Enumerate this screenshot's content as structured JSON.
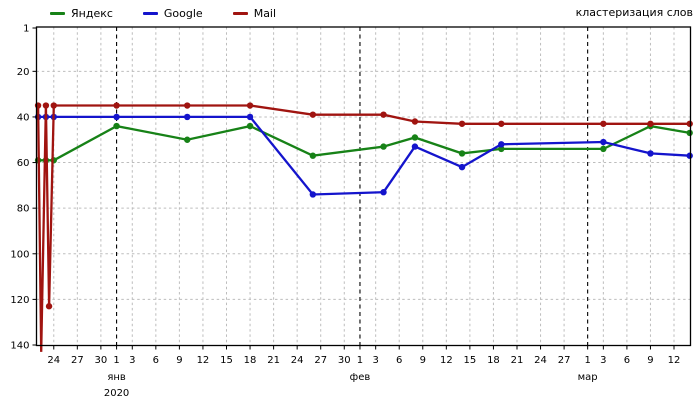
{
  "legend": {
    "items": [
      {
        "label": "Яндекс",
        "color": "#178217"
      },
      {
        "label": "Google",
        "color": "#1414cc"
      },
      {
        "label": "Mail",
        "color": "#a01410"
      }
    ]
  },
  "chart_data": {
    "type": "line",
    "title": "кластеризация слов",
    "legend_position": "top-left",
    "grid": true,
    "y_axis": {
      "inverted": true,
      "min": 1,
      "max": 140,
      "ticks": [
        1,
        20,
        40,
        60,
        80,
        100,
        120,
        140
      ]
    },
    "x_axis": {
      "start_date": "2019-12-22",
      "end_date": "2020-03-14",
      "span_days": 83,
      "ticks": [
        {
          "day": 2,
          "label": "24"
        },
        {
          "day": 5,
          "label": "27"
        },
        {
          "day": 8,
          "label": "30"
        },
        {
          "day": 10,
          "label": "1"
        },
        {
          "day": 12,
          "label": "3"
        },
        {
          "day": 15,
          "label": "6"
        },
        {
          "day": 18,
          "label": "9"
        },
        {
          "day": 21,
          "label": "12"
        },
        {
          "day": 24,
          "label": "15"
        },
        {
          "day": 27,
          "label": "18"
        },
        {
          "day": 30,
          "label": "21"
        },
        {
          "day": 33,
          "label": "24"
        },
        {
          "day": 36,
          "label": "27"
        },
        {
          "day": 39,
          "label": "30"
        },
        {
          "day": 41,
          "label": "1"
        },
        {
          "day": 43,
          "label": "3"
        },
        {
          "day": 46,
          "label": "6"
        },
        {
          "day": 49,
          "label": "9"
        },
        {
          "day": 52,
          "label": "12"
        },
        {
          "day": 55,
          "label": "15"
        },
        {
          "day": 58,
          "label": "18"
        },
        {
          "day": 61,
          "label": "21"
        },
        {
          "day": 64,
          "label": "24"
        },
        {
          "day": 67,
          "label": "27"
        },
        {
          "day": 70,
          "label": "1"
        },
        {
          "day": 72,
          "label": "3"
        },
        {
          "day": 75,
          "label": "6"
        },
        {
          "day": 78,
          "label": "9"
        },
        {
          "day": 81,
          "label": "12"
        }
      ],
      "months": [
        {
          "day": 10,
          "label": "янв",
          "year": "2020"
        },
        {
          "day": 41,
          "label": "фев"
        },
        {
          "day": 70,
          "label": "мар"
        }
      ]
    },
    "check_dates": [
      "22 дек",
      "23 дек",
      "24 дек",
      "1 янв",
      "10 янв",
      "18 янв",
      "26 янв",
      "4 фев",
      "8 фев",
      "14 фев",
      "19 фев",
      "3 мар",
      "9 мар",
      "14 мар"
    ],
    "series": [
      {
        "name": "Яндекс",
        "color": "#178217",
        "points": [
          {
            "day": 0,
            "pos": 59
          },
          {
            "day": 1,
            "pos": 59
          },
          {
            "day": 2,
            "pos": 59
          },
          {
            "day": 10,
            "pos": 44
          },
          {
            "day": 19,
            "pos": 50
          },
          {
            "day": 27,
            "pos": 44
          },
          {
            "day": 35,
            "pos": 57
          },
          {
            "day": 44,
            "pos": 53
          },
          {
            "day": 48,
            "pos": 49
          },
          {
            "day": 54,
            "pos": 56
          },
          {
            "day": 59,
            "pos": 54
          },
          {
            "day": 72,
            "pos": 54
          },
          {
            "day": 78,
            "pos": 44
          },
          {
            "day": 83,
            "pos": 47
          }
        ]
      },
      {
        "name": "Google",
        "color": "#1414cc",
        "points": [
          {
            "day": 0,
            "pos": 40
          },
          {
            "day": 1,
            "pos": 40
          },
          {
            "day": 2,
            "pos": 40
          },
          {
            "day": 10,
            "pos": 40
          },
          {
            "day": 19,
            "pos": 40
          },
          {
            "day": 27,
            "pos": 40
          },
          {
            "day": 35,
            "pos": 74
          },
          {
            "day": 44,
            "pos": 73
          },
          {
            "day": 48,
            "pos": 53
          },
          {
            "day": 54,
            "pos": 62
          },
          {
            "day": 59,
            "pos": 52
          },
          {
            "day": 72,
            "pos": 51
          },
          {
            "day": 78,
            "pos": 56
          },
          {
            "day": 83,
            "pos": 57
          }
        ]
      },
      {
        "name": "Mail",
        "color": "#a01410",
        "points": [
          {
            "day": 0,
            "pos": 35
          },
          {
            "day": 0.4,
            "pos": 143,
            "dot": false
          },
          {
            "day": 1,
            "pos": 35
          },
          {
            "day": 1.4,
            "pos": 123
          },
          {
            "day": 2,
            "pos": 35
          },
          {
            "day": 10,
            "pos": 35
          },
          {
            "day": 19,
            "pos": 35
          },
          {
            "day": 27,
            "pos": 35
          },
          {
            "day": 35,
            "pos": 39
          },
          {
            "day": 44,
            "pos": 39
          },
          {
            "day": 48,
            "pos": 42
          },
          {
            "day": 54,
            "pos": 43
          },
          {
            "day": 59,
            "pos": 43
          },
          {
            "day": 72,
            "pos": 43
          },
          {
            "day": 78,
            "pos": 43
          },
          {
            "day": 83,
            "pos": 43
          }
        ]
      }
    ]
  }
}
